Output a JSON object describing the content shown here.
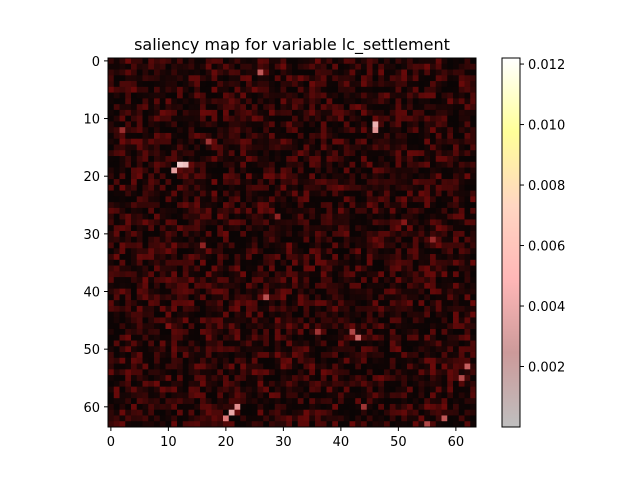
{
  "chart_data": {
    "type": "heatmap",
    "title": "saliency map for variable lc_settlement",
    "grid_size": [
      64,
      64
    ],
    "xlim": [
      -0.5,
      63.5
    ],
    "ylim": [
      63.5,
      -0.5
    ],
    "x_ticks": [
      0,
      10,
      20,
      30,
      40,
      50,
      60
    ],
    "y_ticks": [
      0,
      10,
      20,
      30,
      40,
      50,
      60
    ],
    "x_tick_labels": [
      "0",
      "10",
      "20",
      "30",
      "40",
      "50",
      "60"
    ],
    "y_tick_labels": [
      "0",
      "10",
      "20",
      "30",
      "40",
      "50",
      "60"
    ],
    "colorbar": {
      "min": 0.0,
      "max": 0.0122,
      "ticks": [
        0.002,
        0.004,
        0.006,
        0.008,
        0.01,
        0.012
      ],
      "tick_labels": [
        "0.002",
        "0.004",
        "0.006",
        "0.008",
        "0.010",
        "0.012"
      ],
      "colors": [
        "#bfbfbf",
        "#cc9a9a",
        "#ffb7b7",
        "#ffd6c2",
        "#ffff99",
        "#ffffff"
      ],
      "cmap": "hot (alpha-blended)"
    },
    "grid_on": false,
    "hotspots": [
      {
        "x": 12,
        "y": 18,
        "value": 0.0095
      },
      {
        "x": 13,
        "y": 18,
        "value": 0.0088
      },
      {
        "x": 11,
        "y": 19,
        "value": 0.007
      },
      {
        "x": 46,
        "y": 11,
        "value": 0.008
      },
      {
        "x": 46,
        "y": 12,
        "value": 0.0065
      },
      {
        "x": 21,
        "y": 61,
        "value": 0.0075
      },
      {
        "x": 22,
        "y": 60,
        "value": 0.006
      },
      {
        "x": 20,
        "y": 62,
        "value": 0.005
      },
      {
        "x": 26,
        "y": 2,
        "value": 0.004
      },
      {
        "x": 43,
        "y": 48,
        "value": 0.0045
      },
      {
        "x": 42,
        "y": 47,
        "value": 0.0035
      },
      {
        "x": 27,
        "y": 41,
        "value": 0.0038
      },
      {
        "x": 62,
        "y": 53,
        "value": 0.0042
      },
      {
        "x": 61,
        "y": 55,
        "value": 0.0036
      },
      {
        "x": 58,
        "y": 62,
        "value": 0.004
      },
      {
        "x": 55,
        "y": 63,
        "value": 0.0035
      },
      {
        "x": 17,
        "y": 14,
        "value": 0.003
      },
      {
        "x": 2,
        "y": 12,
        "value": 0.0028
      },
      {
        "x": 16,
        "y": 32,
        "value": 0.0025
      },
      {
        "x": 36,
        "y": 47,
        "value": 0.003
      },
      {
        "x": 56,
        "y": 31,
        "value": 0.0027
      },
      {
        "x": 29,
        "y": 27,
        "value": 0.0025
      },
      {
        "x": 51,
        "y": 28,
        "value": 0.0022
      },
      {
        "x": 10,
        "y": 46,
        "value": 0.002
      },
      {
        "x": 44,
        "y": 60,
        "value": 0.003
      }
    ]
  }
}
